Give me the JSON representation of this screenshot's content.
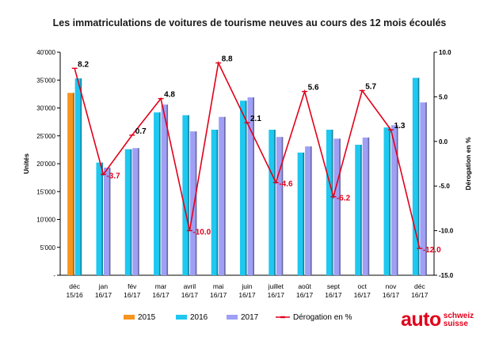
{
  "chart_data": {
    "type": "bar+line",
    "title": "Les immatriculations de voitures de tourisme neuves au cours des 12 mois écoulés",
    "ylabel": "Unités",
    "y2label": "Dérogation en %",
    "ylim": [
      0,
      40000
    ],
    "y2lim": [
      -15,
      10
    ],
    "yticks": [
      0,
      5000,
      10000,
      15000,
      20000,
      25000,
      30000,
      35000,
      40000
    ],
    "ytick_labels": [
      "-",
      "5'000",
      "10'000",
      "15'000",
      "20'000",
      "25'000",
      "30'000",
      "35'000",
      "40'000"
    ],
    "y2ticks": [
      -15,
      -10,
      -5,
      0,
      5,
      10
    ],
    "y2tick_labels": [
      "-15.0",
      "-10.0",
      "-5.0",
      "0.0",
      "5.0",
      "10.0"
    ],
    "categories": [
      [
        "déc",
        "15/16"
      ],
      [
        "jan",
        "16/17"
      ],
      [
        "fév",
        "16/17"
      ],
      [
        "mar",
        "16/17"
      ],
      [
        "avril",
        "16/17"
      ],
      [
        "mai",
        "16/17"
      ],
      [
        "juin",
        "16/17"
      ],
      [
        "juillet",
        "16/17"
      ],
      [
        "août",
        "16/17"
      ],
      [
        "sept",
        "16/17"
      ],
      [
        "oct",
        "16/17"
      ],
      [
        "nov",
        "16/17"
      ],
      [
        "déc",
        "16/17"
      ]
    ],
    "series": [
      {
        "name": "2015",
        "color": "#f7941d",
        "values": [
          32700,
          null,
          null,
          null,
          null,
          null,
          null,
          null,
          null,
          null,
          null,
          null,
          null
        ]
      },
      {
        "name": "2016",
        "color": "#1ec8f0",
        "values": [
          35300,
          20200,
          22600,
          29200,
          28700,
          26100,
          31300,
          26100,
          22000,
          26100,
          23400,
          26500,
          35400
        ]
      },
      {
        "name": "2017",
        "color": "#9f9ff5",
        "values": [
          null,
          19300,
          22800,
          30600,
          25800,
          28400,
          31900,
          24800,
          23100,
          24500,
          24700,
          26900,
          31000
        ]
      }
    ],
    "line": {
      "name": "Dérogation en %",
      "color": "#e2001a",
      "values": [
        8.2,
        -3.7,
        0.7,
        4.8,
        -10.0,
        8.8,
        2.1,
        -4.6,
        5.6,
        -6.2,
        5.7,
        1.3,
        -12.0
      ],
      "labels": [
        "8.2",
        "-3.7",
        "0.7",
        "4.8",
        "-10.0",
        "8.8",
        "2.1",
        "-4.6",
        "5.6",
        "-6.2",
        "5.7",
        "1.3",
        "-12.0"
      ]
    },
    "legend_position": "bottom"
  },
  "logo": {
    "main": "auto",
    "line1": "schweiz",
    "line2": "suisse"
  }
}
